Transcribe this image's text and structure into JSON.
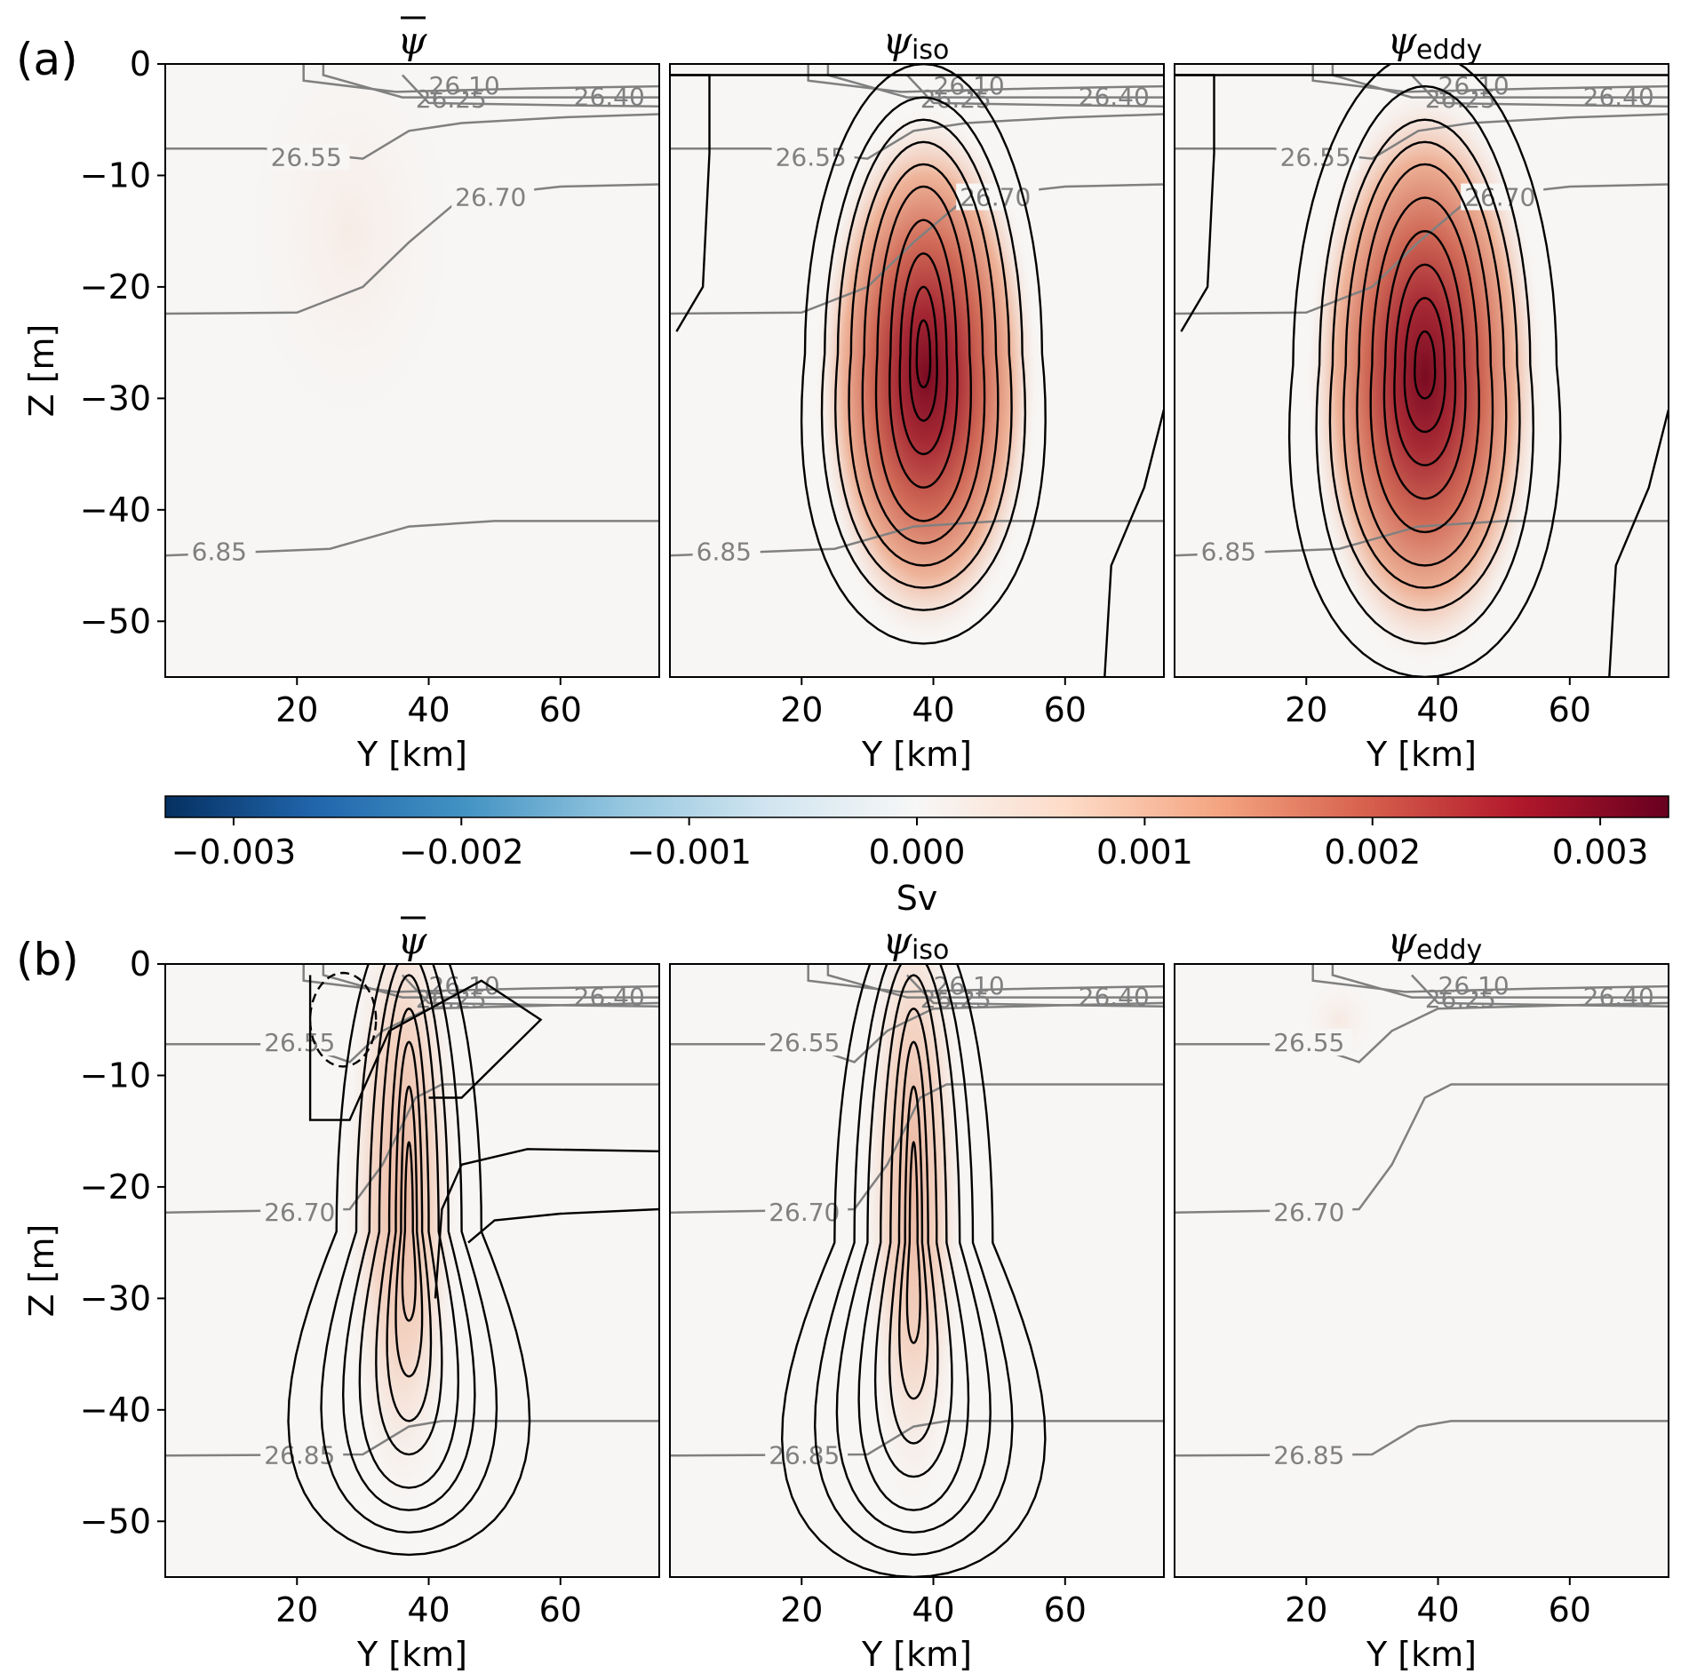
{
  "chart_data": {
    "type": "heatmap",
    "colorbar": {
      "label": "Sv",
      "ticks": [
        "−0.003",
        "−0.002",
        "−0.001",
        "0.000",
        "0.001",
        "0.002",
        "0.003"
      ],
      "range": [
        -0.0033,
        0.0033
      ],
      "colormap": "RdBu_r"
    },
    "rows": [
      {
        "letter": "(a)",
        "panels": [
          {
            "title_symbol": "ψ",
            "title_overbar": true,
            "title_subscript": "",
            "xlabel": "Y [km]",
            "ylabel": "Z [m]",
            "xticks": [
              "20",
              "40",
              "60"
            ],
            "yticks": [
              "0",
              "−10",
              "−20",
              "−30",
              "−40",
              "−50"
            ],
            "xlim": [
              0,
              75
            ],
            "ylim": [
              -55,
              0
            ],
            "max_value": 0.0002,
            "isopycnal_labels": [
              "26.10",
              "26.25",
              "26.40",
              "26.55",
              "26.70",
              "6.85"
            ]
          },
          {
            "title_symbol": "ψ",
            "title_overbar": false,
            "title_subscript": "iso",
            "xlabel": "Y [km]",
            "xticks": [
              "20",
              "40",
              "60"
            ],
            "xlim": [
              0,
              75
            ],
            "ylim": [
              -55,
              0
            ],
            "max_value": 0.0033,
            "isopycnal_labels": [
              "26.10",
              "26.25",
              "26.40",
              "26.55",
              "26.70",
              "6.85"
            ]
          },
          {
            "title_symbol": "ψ",
            "title_overbar": false,
            "title_subscript": "eddy",
            "xlabel": "Y [km]",
            "xticks": [
              "20",
              "40",
              "60"
            ],
            "xlim": [
              0,
              75
            ],
            "ylim": [
              -55,
              0
            ],
            "max_value": 0.0033,
            "isopycnal_labels": [
              "26.10",
              "26.25",
              "26.40",
              "26.55",
              "26.70",
              "6.85"
            ]
          }
        ]
      },
      {
        "letter": "(b)",
        "panels": [
          {
            "title_symbol": "ψ",
            "title_overbar": true,
            "title_subscript": "",
            "xlabel": "Y [km]",
            "ylabel": "Z [m]",
            "xticks": [
              "20",
              "40",
              "60"
            ],
            "yticks": [
              "0",
              "−10",
              "−20",
              "−30",
              "−40",
              "−50"
            ],
            "xlim": [
              0,
              75
            ],
            "ylim": [
              -55,
              0
            ],
            "max_value": 0.0008,
            "isopycnal_labels": [
              "26.10",
              "26.25",
              "26.40",
              "26.55",
              "26.70",
              "26.85"
            ]
          },
          {
            "title_symbol": "ψ",
            "title_overbar": false,
            "title_subscript": "iso",
            "xlabel": "Y [km]",
            "xticks": [
              "20",
              "40",
              "60"
            ],
            "xlim": [
              0,
              75
            ],
            "ylim": [
              -55,
              0
            ],
            "max_value": 0.0008,
            "isopycnal_labels": [
              "26.10",
              "26.25",
              "26.40",
              "26.55",
              "26.70",
              "26.85"
            ]
          },
          {
            "title_symbol": "ψ",
            "title_overbar": false,
            "title_subscript": "eddy",
            "xlabel": "Y [km]",
            "xticks": [
              "20",
              "40",
              "60"
            ],
            "xlim": [
              0,
              75
            ],
            "ylim": [
              -55,
              0
            ],
            "max_value": 0.0002,
            "isopycnal_labels": [
              "26.10",
              "26.25",
              "26.40",
              "26.55",
              "26.70",
              "26.85"
            ]
          }
        ]
      }
    ]
  }
}
